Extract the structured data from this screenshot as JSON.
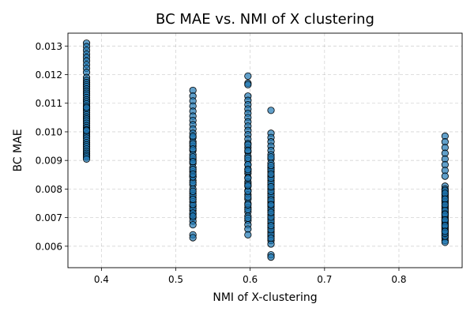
{
  "chart_data": {
    "type": "scatter",
    "title": "BC MAE vs. NMI of X clustering",
    "xlabel": "NMI of X-clustering",
    "ylabel": "BC MAE",
    "xlim": [
      0.355,
      0.885
    ],
    "ylim": [
      0.00525,
      0.01345
    ],
    "xticks": [
      0.4,
      0.5,
      0.6,
      0.7,
      0.8
    ],
    "xtick_labels": [
      "0.4",
      "0.5",
      "0.6",
      "0.7",
      "0.8"
    ],
    "yticks": [
      0.006,
      0.007,
      0.008,
      0.009,
      0.01,
      0.011,
      0.012,
      0.013
    ],
    "ytick_labels": [
      "0.006",
      "0.007",
      "0.008",
      "0.009",
      "0.010",
      "0.011",
      "0.012",
      "0.013"
    ],
    "grid": true,
    "marker_color": "#1f77b4",
    "marker_edge_color": "#000000",
    "series": [
      {
        "x": [
          0.38,
          0.38,
          0.38,
          0.38,
          0.38,
          0.38,
          0.38,
          0.38,
          0.38,
          0.38,
          0.38,
          0.38,
          0.38,
          0.38,
          0.38,
          0.38,
          0.38,
          0.38,
          0.38,
          0.38,
          0.38,
          0.38,
          0.38,
          0.38,
          0.38,
          0.38,
          0.38,
          0.38,
          0.38,
          0.38,
          0.38,
          0.38,
          0.38,
          0.38,
          0.38,
          0.38,
          0.38,
          0.38,
          0.38,
          0.38,
          0.38,
          0.38,
          0.38,
          0.38,
          0.38,
          0.38,
          0.38,
          0.38,
          0.38,
          0.38
        ],
        "y": [
          0.0131,
          0.01298,
          0.01285,
          0.01272,
          0.0126,
          0.01248,
          0.01235,
          0.01222,
          0.01208,
          0.0119,
          0.0118,
          0.01172,
          0.01165,
          0.01158,
          0.0115,
          0.01142,
          0.01135,
          0.01128,
          0.0112,
          0.01112,
          0.01105,
          0.01098,
          0.0109,
          0.01082,
          0.01075,
          0.01068,
          0.0106,
          0.01052,
          0.01045,
          0.01038,
          0.0103,
          0.01022,
          0.01015,
          0.01008,
          0.01,
          0.00992,
          0.00985,
          0.00978,
          0.0097,
          0.00962,
          0.00955,
          0.00948,
          0.0094,
          0.00932,
          0.00925,
          0.00918,
          0.00912,
          0.00905,
          0.01005,
          0.01085
        ]
      },
      {
        "x": [
          0.523,
          0.523,
          0.523,
          0.523,
          0.523,
          0.523,
          0.523,
          0.523,
          0.523,
          0.523,
          0.523,
          0.523,
          0.523,
          0.523,
          0.523,
          0.523,
          0.523,
          0.523,
          0.523,
          0.523,
          0.523,
          0.523,
          0.523,
          0.523,
          0.523,
          0.523,
          0.523,
          0.523,
          0.523,
          0.523,
          0.523,
          0.523,
          0.523,
          0.523,
          0.523,
          0.523,
          0.523,
          0.523,
          0.523,
          0.523,
          0.523,
          0.523,
          0.523,
          0.523,
          0.523,
          0.523,
          0.523,
          0.523,
          0.523,
          0.523
        ],
        "y": [
          0.01145,
          0.01125,
          0.01108,
          0.0109,
          0.01072,
          0.01055,
          0.0104,
          0.01025,
          0.0101,
          0.00995,
          0.0098,
          0.00965,
          0.0095,
          0.00935,
          0.0092,
          0.00905,
          0.0089,
          0.00875,
          0.0086,
          0.00845,
          0.0083,
          0.00815,
          0.008,
          0.00785,
          0.0077,
          0.00755,
          0.0074,
          0.00725,
          0.00712,
          0.007,
          0.00688,
          0.00675,
          0.0064,
          0.0063,
          0.00985,
          0.00912,
          0.00868,
          0.00822,
          0.00778,
          0.00732,
          0.00958,
          0.00896,
          0.00842,
          0.00792,
          0.00746,
          0.00716,
          0.0094,
          0.00852,
          0.00764,
          0.00705
        ]
      },
      {
        "x": [
          0.597,
          0.597,
          0.597,
          0.597,
          0.597,
          0.597,
          0.597,
          0.597,
          0.597,
          0.597,
          0.597,
          0.597,
          0.597,
          0.597,
          0.597,
          0.597,
          0.597,
          0.597,
          0.597,
          0.597,
          0.597,
          0.597,
          0.597,
          0.597,
          0.597,
          0.597,
          0.597,
          0.597,
          0.597,
          0.597,
          0.597,
          0.597,
          0.597,
          0.597,
          0.597,
          0.597,
          0.597,
          0.597,
          0.597,
          0.597,
          0.597,
          0.597,
          0.597,
          0.597,
          0.597,
          0.597,
          0.597,
          0.597,
          0.597,
          0.597
        ],
        "y": [
          0.01195,
          0.0117,
          0.01165,
          0.01125,
          0.0111,
          0.01095,
          0.0108,
          0.01065,
          0.0105,
          0.01035,
          0.0102,
          0.01005,
          0.0099,
          0.00975,
          0.0096,
          0.00945,
          0.0093,
          0.00915,
          0.009,
          0.00885,
          0.0087,
          0.00855,
          0.0084,
          0.00825,
          0.0081,
          0.00795,
          0.0078,
          0.00765,
          0.0075,
          0.00735,
          0.0072,
          0.00705,
          0.0069,
          0.00675,
          0.0066,
          0.0064,
          0.00955,
          0.00908,
          0.00862,
          0.00818,
          0.00772,
          0.00728,
          0.00935,
          0.00885,
          0.00838,
          0.00792,
          0.00745,
          0.00698,
          0.00868,
          0.00812
        ]
      },
      {
        "x": [
          0.628,
          0.628,
          0.628,
          0.628,
          0.628,
          0.628,
          0.628,
          0.628,
          0.628,
          0.628,
          0.628,
          0.628,
          0.628,
          0.628,
          0.628,
          0.628,
          0.628,
          0.628,
          0.628,
          0.628,
          0.628,
          0.628,
          0.628,
          0.628,
          0.628,
          0.628,
          0.628,
          0.628,
          0.628,
          0.628,
          0.628,
          0.628,
          0.628,
          0.628,
          0.628,
          0.628,
          0.628,
          0.628,
          0.628,
          0.628,
          0.628,
          0.628,
          0.628,
          0.628,
          0.628,
          0.628,
          0.628,
          0.628,
          0.628,
          0.628
        ],
        "y": [
          0.01075,
          0.00995,
          0.0098,
          0.00965,
          0.0095,
          0.00935,
          0.0092,
          0.00905,
          0.0089,
          0.00875,
          0.0086,
          0.00845,
          0.0083,
          0.00815,
          0.008,
          0.00785,
          0.0077,
          0.00755,
          0.0074,
          0.00725,
          0.0071,
          0.00695,
          0.0068,
          0.00665,
          0.0065,
          0.00635,
          0.0062,
          0.00608,
          0.0057,
          0.00562,
          0.00912,
          0.00868,
          0.00822,
          0.00778,
          0.00732,
          0.00688,
          0.00642,
          0.00882,
          0.00838,
          0.00792,
          0.00748,
          0.00702,
          0.00658,
          0.00852,
          0.00808,
          0.00762,
          0.00718,
          0.00672,
          0.00628,
          0.00745
        ]
      },
      {
        "x": [
          0.862,
          0.862,
          0.862,
          0.862,
          0.862,
          0.862,
          0.862,
          0.862,
          0.862,
          0.862,
          0.862,
          0.862,
          0.862,
          0.862,
          0.862,
          0.862,
          0.862,
          0.862,
          0.862,
          0.862,
          0.862,
          0.862,
          0.862,
          0.862,
          0.862,
          0.862,
          0.862,
          0.862,
          0.862,
          0.862,
          0.862,
          0.862,
          0.862,
          0.862,
          0.862,
          0.862,
          0.862,
          0.862,
          0.862,
          0.862,
          0.862,
          0.862,
          0.862,
          0.862,
          0.862,
          0.862,
          0.862,
          0.862,
          0.862,
          0.862
        ],
        "y": [
          0.00985,
          0.00965,
          0.00945,
          0.00925,
          0.00905,
          0.00885,
          0.00865,
          0.00845,
          0.0081,
          0.008,
          0.0079,
          0.0078,
          0.0077,
          0.0076,
          0.0075,
          0.0074,
          0.0073,
          0.0072,
          0.0071,
          0.007,
          0.0069,
          0.0068,
          0.0067,
          0.0066,
          0.0065,
          0.0064,
          0.0063,
          0.0062,
          0.00614,
          0.00795,
          0.00775,
          0.00755,
          0.00735,
          0.00715,
          0.00695,
          0.00675,
          0.00655,
          0.00635,
          0.00785,
          0.00765,
          0.00745,
          0.00725,
          0.00705,
          0.00685,
          0.00665,
          0.00645,
          0.00712,
          0.00692,
          0.00672,
          0.00652
        ]
      }
    ]
  }
}
